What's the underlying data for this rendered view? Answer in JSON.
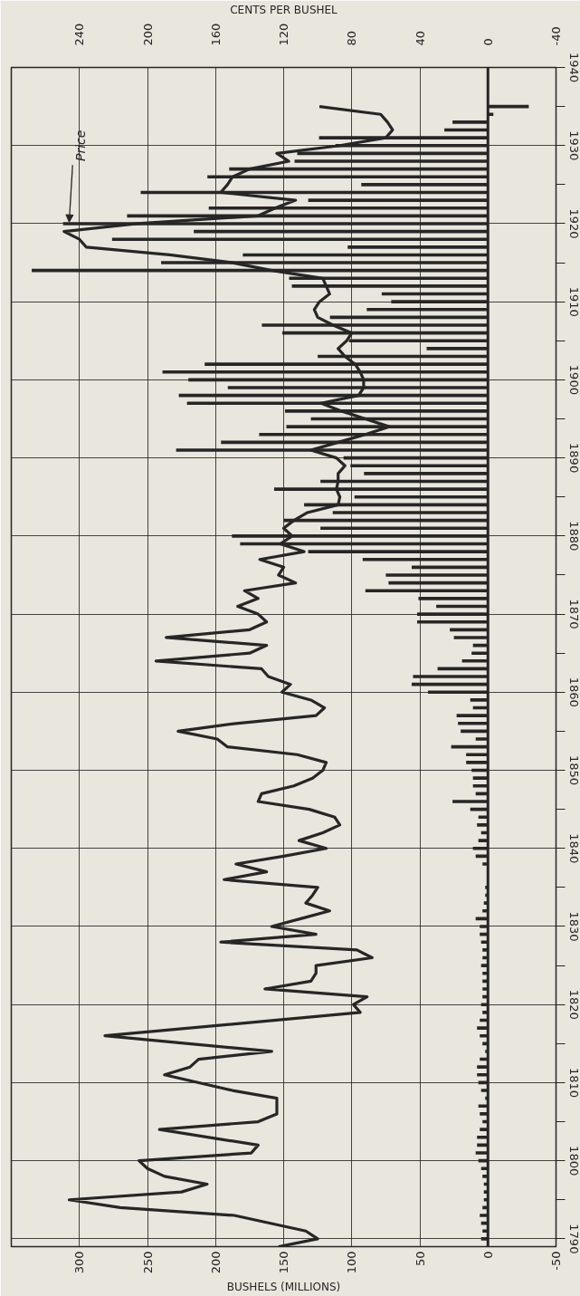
{
  "chart_data": {
    "type": "bar",
    "orientation": "horizontal",
    "xlabel": "BUSHELS (MILLIONS)",
    "x2label": "CENTS PER BUSHEL",
    "x": [
      1790,
      1791,
      1792,
      1793,
      1794,
      1795,
      1796,
      1797,
      1798,
      1799,
      1800,
      1801,
      1802,
      1803,
      1804,
      1805,
      1806,
      1807,
      1808,
      1809,
      1810,
      1811,
      1812,
      1813,
      1814,
      1815,
      1816,
      1817,
      1818,
      1819,
      1820,
      1821,
      1822,
      1823,
      1824,
      1825,
      1826,
      1827,
      1828,
      1829,
      1830,
      1831,
      1832,
      1833,
      1834,
      1835,
      1836,
      1837,
      1838,
      1839,
      1840,
      1841,
      1842,
      1843,
      1844,
      1845,
      1846,
      1847,
      1848,
      1849,
      1850,
      1851,
      1852,
      1853,
      1854,
      1855,
      1856,
      1857,
      1858,
      1859,
      1860,
      1861,
      1862,
      1863,
      1864,
      1865,
      1866,
      1867,
      1868,
      1869,
      1870,
      1871,
      1872,
      1873,
      1874,
      1875,
      1876,
      1877,
      1878,
      1879,
      1880,
      1881,
      1882,
      1883,
      1884,
      1885,
      1886,
      1887,
      1888,
      1889,
      1890,
      1891,
      1892,
      1893,
      1894,
      1895,
      1896,
      1897,
      1898,
      1899,
      1900,
      1901,
      1902,
      1903,
      1904,
      1905,
      1906,
      1907,
      1908,
      1909,
      1910,
      1911,
      1912,
      1913,
      1914,
      1915,
      1916,
      1917,
      1918,
      1919,
      1920,
      1921,
      1922,
      1923,
      1924,
      1925,
      1926,
      1927,
      1928,
      1929,
      1930,
      1931,
      1932,
      1933,
      1934,
      1935
    ],
    "series": [
      {
        "color": "#262626",
        "values": [
          5,
          4,
          5,
          6,
          4,
          3,
          3,
          3,
          4,
          5,
          7,
          9,
          8,
          8,
          6,
          4,
          6,
          7,
          2,
          5,
          7,
          8,
          8,
          6,
          2,
          4,
          6,
          8,
          6,
          4,
          5,
          4,
          4,
          4,
          4,
          5,
          4,
          4,
          5,
          6,
          6,
          9,
          4,
          3,
          2,
          2,
          null,
          null,
          4,
          9,
          11,
          7,
          5,
          8,
          7,
          13,
          26,
          9,
          11,
          11,
          12,
          16,
          16,
          27,
          9,
          20,
          22,
          23,
          11,
          13,
          44,
          56,
          55,
          37,
          19,
          12,
          11,
          25,
          28,
          52,
          52,
          38,
          51,
          90,
          73,
          75,
          56,
          92,
          132,
          182,
          188,
          123,
          150,
          114,
          135,
          98,
          157,
          123,
          91,
          101,
          106,
          229,
          196,
          168,
          148,
          130,
          149,
          221,
          227,
          191,
          220,
          239,
          208,
          125,
          45,
          102,
          151,
          166,
          116,
          89,
          71,
          78,
          144,
          146,
          335,
          240,
          180,
          103,
          276,
          216,
          312,
          265,
          205,
          132,
          255,
          93,
          206,
          190,
          142,
          140,
          112,
          124,
          32,
          26,
          -4,
          -30
        ]
      },
      {
        "name": "Price",
        "type": "line",
        "axis": "x2",
        "color": "#262626",
        "x": [
          1789,
          1790,
          1791,
          1793,
          1794,
          1795,
          1796,
          1797,
          1798,
          1799,
          1800,
          1801,
          1802,
          1804,
          1805,
          1806,
          1808,
          1809,
          1811,
          1812,
          1813,
          1814,
          1816,
          1819,
          1820,
          1821,
          1822,
          1823,
          1824,
          1825,
          1826,
          1827,
          1828,
          1829,
          1830,
          1831,
          1832,
          1833,
          1834,
          1835,
          1836,
          1837,
          1838,
          1839,
          1840,
          1841,
          1842,
          1843,
          1844,
          1845,
          1846,
          1847,
          1848,
          1849,
          1850,
          1851,
          1852,
          1853,
          1854,
          1855,
          1856,
          1857,
          1858,
          1859,
          1860,
          1861,
          1862,
          1863,
          1864,
          1865,
          1866,
          1867,
          1868,
          1869,
          1870,
          1871,
          1872,
          1873,
          1874,
          1875,
          1876,
          1877,
          1878,
          1879,
          1880,
          1881,
          1882,
          1883,
          1884,
          1885,
          1886,
          1887,
          1888,
          1889,
          1890,
          1891,
          1892,
          1893,
          1894,
          1895,
          1896,
          1897,
          1898,
          1899,
          1900,
          1901,
          1902,
          1903,
          1904,
          1905,
          1906,
          1907,
          1908,
          1909,
          1910,
          1911,
          1912,
          1913,
          1914,
          1915,
          1916,
          1917,
          1918,
          1919,
          1920,
          1921,
          1922,
          1923,
          1924,
          1925,
          1926,
          1927,
          1928,
          1929,
          1930,
          1931,
          1932,
          1933,
          1934,
          1935
        ],
        "values": [
          123,
          100,
          107,
          149,
          216,
          246,
          180,
          165,
          190,
          200,
          205,
          139,
          135,
          193,
          135,
          124,
          124,
          150,
          190,
          175,
          170,
          127,
          225,
          75,
          79,
          71,
          131,
          104,
          101,
          101,
          68,
          77,
          157,
          101,
          127,
          110,
          93,
          107,
          103,
          100,
          155,
          130,
          148,
          120,
          95,
          111,
          97,
          87,
          90,
          105,
          135,
          133,
          114,
          103,
          97,
          95,
          112,
          153,
          159,
          182,
          148,
          101,
          96,
          104,
          121,
          116,
          129,
          133,
          195,
          140,
          130,
          189,
          140,
          130,
          135,
          147,
          135,
          143,
          113,
          123,
          120,
          134,
          108,
          122,
          115,
          120,
          114,
          106,
          88,
          87,
          89,
          88,
          88,
          84,
          89,
          104,
          88,
          72,
          58,
          72,
          86,
          98,
          76,
          73,
          73,
          75,
          78,
          84,
          88,
          83,
          80,
          91,
          100,
          102,
          99,
          93,
          95,
          97,
          127,
          150,
          187,
          236,
          240,
          249,
          206,
          135,
          125,
          113,
          157,
          153,
          150,
          140,
          117,
          124,
          87,
          60,
          56,
          59,
          63,
          99
        ]
      }
    ],
    "xlim": [
      350,
      -50
    ],
    "xticks": [
      300,
      250,
      200,
      150,
      100,
      50,
      0,
      -50
    ],
    "x2lim": [
      280,
      -40
    ],
    "x2ticks": [
      240,
      200,
      160,
      120,
      80,
      40,
      0,
      -40
    ],
    "ylim": [
      1789,
      1940
    ],
    "yticks": [
      1790,
      {
        "value": 1795,
        "label": null
      },
      1800,
      {
        "value": 1805,
        "label": null
      },
      1810,
      {
        "value": 1815,
        "label": null
      },
      1820,
      {
        "value": 1825,
        "label": null
      },
      1830,
      {
        "value": 1835,
        "label": null
      },
      1840,
      {
        "value": 1845,
        "label": null
      },
      1850,
      {
        "value": 1855,
        "label": null
      },
      1860,
      {
        "value": 1865,
        "label": null
      },
      1870,
      {
        "value": 1875,
        "label": null
      },
      1880,
      {
        "value": 1885,
        "label": null
      },
      1890,
      {
        "value": 1895,
        "label": null
      },
      1900,
      {
        "value": 1905,
        "label": null
      },
      1910,
      {
        "value": 1915,
        "label": null
      },
      1920,
      {
        "value": 1925,
        "label": null
      },
      1930,
      {
        "value": 1935,
        "label": null
      },
      1940
    ],
    "ref_lines": [
      {
        "axis": "x",
        "value": 0
      }
    ],
    "grid": true
  }
}
